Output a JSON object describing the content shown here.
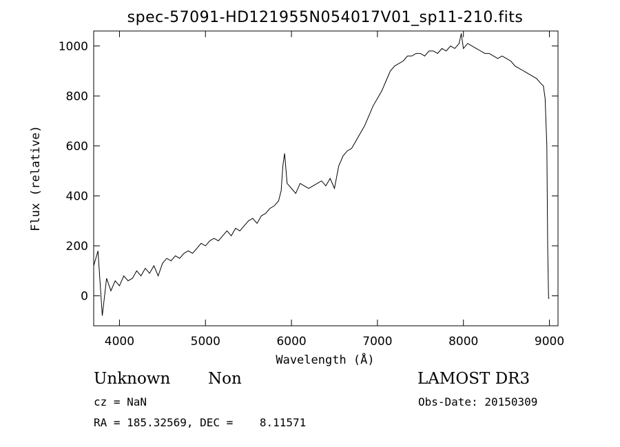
{
  "chart_data": {
    "type": "line",
    "title": "spec-57091-HD121955N054017V01_sp11-210.fits",
    "xlabel": "Wavelength (Å)",
    "ylabel": "Flux (relative)",
    "xlim": [
      3700,
      9100
    ],
    "ylim": [
      -120,
      1060
    ],
    "xticks": [
      4000,
      5000,
      6000,
      7000,
      8000,
      9000
    ],
    "yticks": [
      0,
      200,
      400,
      600,
      800,
      1000
    ],
    "grid": false,
    "series": [
      {
        "color": "#000000",
        "x": [
          3700,
          3750,
          3800,
          3850,
          3900,
          3950,
          4000,
          4050,
          4100,
          4150,
          4200,
          4250,
          4300,
          4350,
          4400,
          4450,
          4500,
          4550,
          4600,
          4650,
          4700,
          4750,
          4800,
          4850,
          4900,
          4950,
          5000,
          5050,
          5100,
          5150,
          5200,
          5250,
          5300,
          5350,
          5400,
          5450,
          5500,
          5550,
          5600,
          5650,
          5700,
          5750,
          5800,
          5850,
          5880,
          5900,
          5920,
          5950,
          6000,
          6050,
          6100,
          6150,
          6200,
          6250,
          6300,
          6350,
          6400,
          6450,
          6500,
          6550,
          6600,
          6650,
          6700,
          6750,
          6800,
          6850,
          6900,
          6950,
          7000,
          7050,
          7100,
          7150,
          7200,
          7250,
          7300,
          7350,
          7400,
          7450,
          7500,
          7550,
          7600,
          7650,
          7700,
          7750,
          7800,
          7850,
          7900,
          7950,
          7975,
          8000,
          8050,
          8100,
          8150,
          8200,
          8250,
          8300,
          8350,
          8400,
          8450,
          8500,
          8550,
          8600,
          8650,
          8700,
          8750,
          8800,
          8850,
          8900,
          8930,
          8950,
          8970,
          8980,
          8990,
          9000
        ],
        "values": [
          120,
          180,
          -80,
          70,
          20,
          60,
          40,
          80,
          60,
          70,
          100,
          80,
          110,
          90,
          120,
          80,
          130,
          150,
          140,
          160,
          150,
          170,
          180,
          170,
          190,
          210,
          200,
          220,
          230,
          220,
          240,
          260,
          240,
          270,
          260,
          280,
          300,
          310,
          290,
          320,
          330,
          350,
          360,
          380,
          420,
          520,
          570,
          450,
          430,
          410,
          450,
          440,
          430,
          440,
          450,
          460,
          440,
          470,
          430,
          520,
          560,
          580,
          590,
          620,
          650,
          680,
          720,
          760,
          790,
          820,
          860,
          900,
          920,
          930,
          940,
          960,
          960,
          970,
          970,
          960,
          980,
          980,
          970,
          990,
          980,
          1000,
          990,
          1010,
          1050,
          990,
          1010,
          1000,
          990,
          980,
          970,
          970,
          960,
          950,
          960,
          950,
          940,
          920,
          910,
          900,
          890,
          880,
          870,
          850,
          840,
          790,
          600,
          200,
          -10,
          -10
        ]
      }
    ]
  },
  "footer": {
    "object_name": "Unknown",
    "object_class": "Non",
    "cz": "cz = NaN",
    "coords": "RA = 185.32569, DEC =    8.11571",
    "survey": "LAMOST DR3",
    "obs_date": "Obs-Date: 20150309"
  }
}
